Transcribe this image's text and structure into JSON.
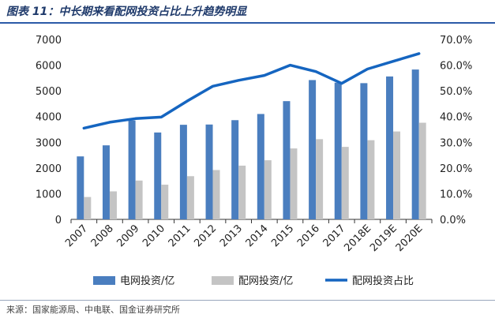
{
  "figure_title": "图表 11：中长期来看配网投资占比上升趋势明显",
  "source": "来源：国家能源局、中电联、国金证券研究所",
  "colors": {
    "series_blue": "#4a7ebf",
    "series_gray": "#c4c4c4",
    "line_blue": "#1565c0"
  },
  "chart_data": {
    "type": "bar",
    "categories": [
      "2007",
      "2008",
      "2009",
      "2010",
      "2011",
      "2012",
      "2013",
      "2014",
      "2015",
      "2016",
      "2017",
      "2018E",
      "2019E",
      "2020E"
    ],
    "ylim": [
      0,
      7000
    ],
    "y_ticks": [
      "0",
      "1000",
      "2000",
      "3000",
      "4000",
      "5000",
      "6000",
      "7000"
    ],
    "y2lim": [
      0,
      70
    ],
    "y2_ticks": [
      "0.0%",
      "10.0%",
      "20.0%",
      "30.0%",
      "40.0%",
      "50.0%",
      "60.0%",
      "70.0%"
    ],
    "series": [
      {
        "name": "电网投资/亿",
        "type": "bar",
        "axis": "left",
        "values": [
          2450,
          2880,
          3850,
          3380,
          3680,
          3690,
          3860,
          4100,
          4600,
          5420,
          5320,
          5300,
          5560,
          5830
        ]
      },
      {
        "name": "配网投资/亿",
        "type": "bar",
        "axis": "left",
        "values": [
          870,
          1090,
          1510,
          1350,
          1680,
          1920,
          2090,
          2300,
          2760,
          3120,
          2820,
          3080,
          3420,
          3760
        ]
      },
      {
        "name": "配网投资占比",
        "type": "line",
        "axis": "right",
        "values": [
          35.5,
          37.8,
          39.2,
          39.8,
          46.0,
          51.8,
          54.1,
          56.0,
          60.0,
          57.5,
          52.9,
          58.5,
          61.5,
          64.5
        ]
      }
    ],
    "grid": false,
    "legend": "bottom"
  }
}
